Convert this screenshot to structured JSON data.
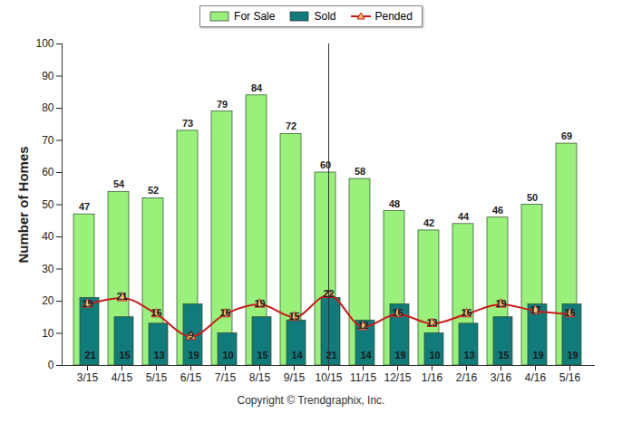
{
  "chart_data": {
    "type": "bar",
    "y_label": "Number of Homes",
    "caption": "Copyright © Trendgraphix, Inc.",
    "categories": [
      "3/15",
      "4/15",
      "5/15",
      "6/15",
      "7/15",
      "8/15",
      "9/15",
      "10/15",
      "11/15",
      "12/15",
      "1/16",
      "2/16",
      "3/16",
      "4/16",
      "5/16"
    ],
    "series": [
      {
        "name": "For Sale",
        "type": "bar",
        "color": "#99f07a",
        "values": [
          47,
          54,
          52,
          73,
          79,
          84,
          72,
          60,
          58,
          48,
          42,
          44,
          46,
          50,
          69
        ]
      },
      {
        "name": "Sold",
        "type": "bar",
        "color": "#117a7a",
        "values": [
          21,
          15,
          13,
          19,
          10,
          15,
          14,
          21,
          14,
          19,
          10,
          13,
          15,
          19,
          19
        ]
      },
      {
        "name": "Pended",
        "type": "line",
        "color": "#cc1a1a",
        "marker": "triangle",
        "values": [
          19,
          21,
          16,
          9,
          16,
          19,
          15,
          22,
          12,
          16,
          13,
          16,
          19,
          17,
          16
        ]
      }
    ],
    "ylim": [
      0,
      100
    ],
    "yticks": [
      0,
      10,
      20,
      30,
      40,
      50,
      60,
      70,
      80,
      90,
      100
    ],
    "grid": false,
    "legend": "top",
    "data_labels": true
  }
}
